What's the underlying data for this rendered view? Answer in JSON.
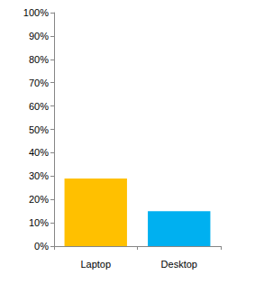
{
  "chart_data": {
    "type": "bar",
    "categories": [
      "Laptop",
      "Desktop"
    ],
    "values": [
      29,
      15
    ],
    "colors": [
      "#ffc000",
      "#00b0f0"
    ],
    "ylim": [
      0,
      100
    ],
    "yticks": [
      {
        "value": 0,
        "label": "0%"
      },
      {
        "value": 10,
        "label": "10%"
      },
      {
        "value": 20,
        "label": "20%"
      },
      {
        "value": 30,
        "label": "30%"
      },
      {
        "value": 40,
        "label": "40%"
      },
      {
        "value": 50,
        "label": "50%"
      },
      {
        "value": 60,
        "label": "60%"
      },
      {
        "value": 70,
        "label": "70%"
      },
      {
        "value": 80,
        "label": "80%"
      },
      {
        "value": 90,
        "label": "90%"
      },
      {
        "value": 100,
        "label": "100%"
      }
    ],
    "grid": false
  }
}
